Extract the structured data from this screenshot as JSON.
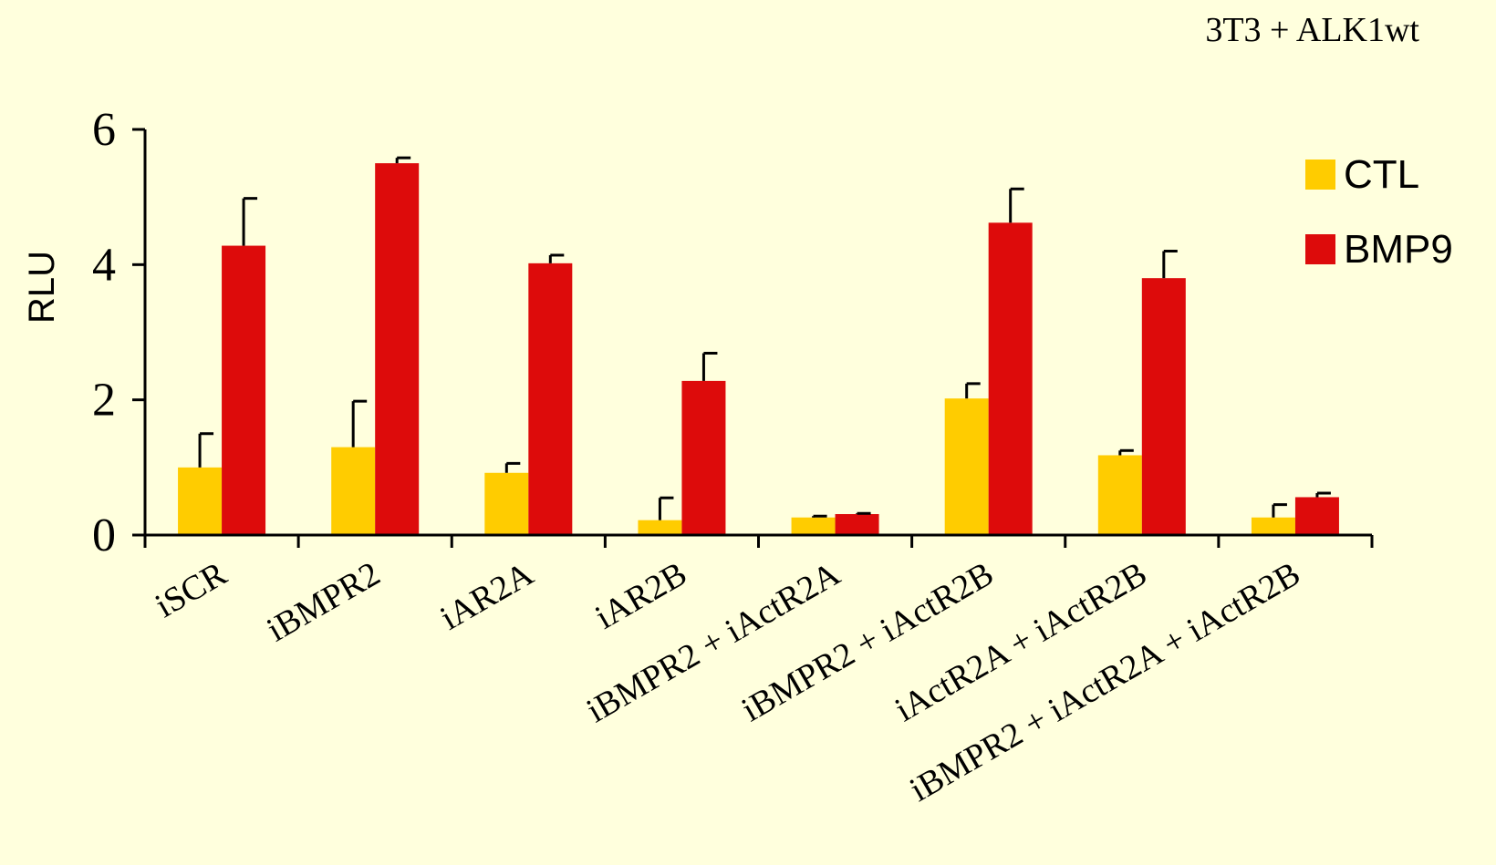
{
  "chart_data": {
    "type": "bar",
    "title": "3T3 + ALK1wt",
    "xlabel": "",
    "ylabel": "RLU",
    "ylim": [
      0,
      6
    ],
    "yticks": [
      "0",
      "2",
      "4",
      "6"
    ],
    "grid": false,
    "legend_position": "top-right",
    "categories": [
      "iSCR",
      "iBMPR2",
      "iAR2A",
      "iAR2B",
      "iBMPR2 + iActR2A",
      "iBMPR2 + iActR2B",
      "iActR2A + iActR2B",
      "iBMPR2 + iActR2A + iActR2B"
    ],
    "series": [
      {
        "name": "CTL",
        "color": "#FFCC00",
        "values": [
          1.0,
          1.3,
          0.92,
          0.22,
          0.26,
          2.02,
          1.18,
          0.26
        ],
        "errors": [
          0.5,
          0.68,
          0.14,
          0.33,
          0.02,
          0.22,
          0.07,
          0.19
        ]
      },
      {
        "name": "BMP9",
        "color": "#DD0B0B",
        "values": [
          4.28,
          5.5,
          4.02,
          2.28,
          0.31,
          4.62,
          3.8,
          0.56
        ],
        "errors": [
          0.7,
          0.08,
          0.12,
          0.41,
          0.01,
          0.5,
          0.4,
          0.06
        ]
      }
    ]
  }
}
